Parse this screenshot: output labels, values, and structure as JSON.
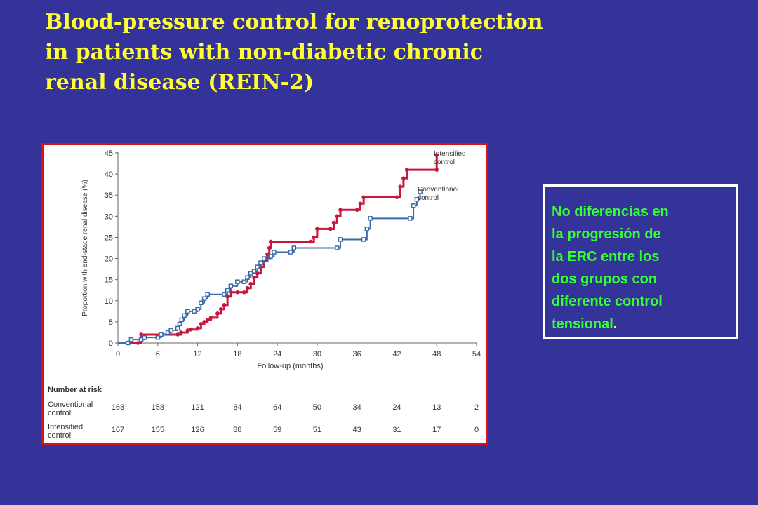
{
  "slide": {
    "title_lines": [
      "Blood-pressure control for renoprotection",
      "in patients with non-diabetic chronic",
      "renal disease (REIN-2)"
    ],
    "note_lines": [
      "No diferencias en",
      "la progresión de",
      "la ERC entre los",
      "dos grupos con",
      "diferente control",
      "tensional"
    ],
    "note_trailing": ".",
    "colors": {
      "background": "#333399",
      "title": "#ffff33",
      "note_text": "#33ff33",
      "figure_border": "#dd1111"
    }
  },
  "chart_data": {
    "type": "line",
    "subtype": "kaplan-meier step curve",
    "title": "",
    "xlabel": "Follow-up (months)",
    "ylabel": "Proportion with end-stage renal disease (%)",
    "xlim": [
      0,
      54
    ],
    "ylim": [
      0,
      45
    ],
    "xticks": [
      0,
      6,
      12,
      18,
      24,
      30,
      36,
      42,
      48,
      54
    ],
    "yticks": [
      0,
      5,
      10,
      15,
      20,
      25,
      30,
      35,
      40,
      45
    ],
    "grid": false,
    "legend": "inline labels at right end of each curve",
    "series": [
      {
        "name": "Intensified control",
        "color": "#c8163c",
        "marker": "filled circle",
        "points": [
          [
            0,
            0
          ],
          [
            3,
            0
          ],
          [
            3.5,
            2
          ],
          [
            9,
            2
          ],
          [
            9.5,
            2.5
          ],
          [
            10.5,
            3
          ],
          [
            11,
            3.2
          ],
          [
            12,
            3.5
          ],
          [
            12.5,
            4.5
          ],
          [
            13,
            5
          ],
          [
            13.5,
            5.5
          ],
          [
            14,
            6
          ],
          [
            15,
            7
          ],
          [
            15.5,
            8
          ],
          [
            16,
            9
          ],
          [
            16.5,
            11
          ],
          [
            17,
            12
          ],
          [
            18,
            12
          ],
          [
            19,
            12
          ],
          [
            19.5,
            13
          ],
          [
            20,
            14
          ],
          [
            20.5,
            15.5
          ],
          [
            21,
            16.5
          ],
          [
            21.5,
            18
          ],
          [
            22,
            19.5
          ],
          [
            22.5,
            21
          ],
          [
            22.8,
            22.5
          ],
          [
            23,
            24
          ],
          [
            29,
            24
          ],
          [
            29.5,
            25
          ],
          [
            30,
            27
          ],
          [
            32,
            27
          ],
          [
            32.5,
            28.5
          ],
          [
            33,
            30
          ],
          [
            33.5,
            31.5
          ],
          [
            36,
            31.5
          ],
          [
            36.5,
            33
          ],
          [
            37,
            34.5
          ],
          [
            42,
            34.5
          ],
          [
            42.5,
            37
          ],
          [
            43,
            39
          ],
          [
            43.5,
            41
          ],
          [
            48,
            41
          ],
          [
            48,
            44.5
          ]
        ]
      },
      {
        "name": "Conventional control",
        "color": "#3a6aaa",
        "marker": "open square",
        "points": [
          [
            0,
            0
          ],
          [
            1.5,
            0
          ],
          [
            2,
            0.8
          ],
          [
            3.5,
            0.8
          ],
          [
            4,
            1.3
          ],
          [
            6,
            1.3
          ],
          [
            6.5,
            2
          ],
          [
            7.5,
            2.5
          ],
          [
            8,
            3
          ],
          [
            9,
            3.5
          ],
          [
            9.3,
            4.5
          ],
          [
            9.6,
            5.5
          ],
          [
            10,
            6.5
          ],
          [
            10.5,
            7.5
          ],
          [
            11.5,
            7.5
          ],
          [
            12,
            8
          ],
          [
            12.5,
            9.5
          ],
          [
            13,
            10.5
          ],
          [
            13.5,
            11.5
          ],
          [
            16,
            11.5
          ],
          [
            16.5,
            12.5
          ],
          [
            17,
            13.5
          ],
          [
            18,
            14.5
          ],
          [
            19,
            14.5
          ],
          [
            19.5,
            15.5
          ],
          [
            20,
            16.5
          ],
          [
            20.5,
            17
          ],
          [
            21,
            18
          ],
          [
            21.5,
            19
          ],
          [
            22,
            20
          ],
          [
            23,
            20.5
          ],
          [
            23.5,
            21.5
          ],
          [
            26,
            21.5
          ],
          [
            26.5,
            22.5
          ],
          [
            33,
            22.5
          ],
          [
            33.5,
            24.5
          ],
          [
            37,
            24.5
          ],
          [
            37.5,
            27
          ],
          [
            38,
            29.5
          ],
          [
            44,
            29.5
          ],
          [
            44.5,
            32.5
          ],
          [
            45,
            34
          ],
          [
            45.5,
            35.8
          ]
        ]
      }
    ],
    "series_labels": [
      [
        "Intensified",
        "control"
      ],
      [
        "Conventional",
        "control"
      ]
    ],
    "number_at_risk": {
      "title": "Number at risk",
      "timepoints": [
        0,
        6,
        12,
        18,
        24,
        30,
        36,
        42,
        48,
        54
      ],
      "rows": [
        {
          "label_lines": [
            "Conventional",
            "control"
          ],
          "values": [
            168,
            158,
            121,
            84,
            64,
            50,
            34,
            24,
            13,
            2
          ]
        },
        {
          "label_lines": [
            "Intensified",
            "control"
          ],
          "values": [
            167,
            155,
            126,
            88,
            59,
            51,
            43,
            31,
            17,
            0
          ]
        }
      ]
    }
  }
}
